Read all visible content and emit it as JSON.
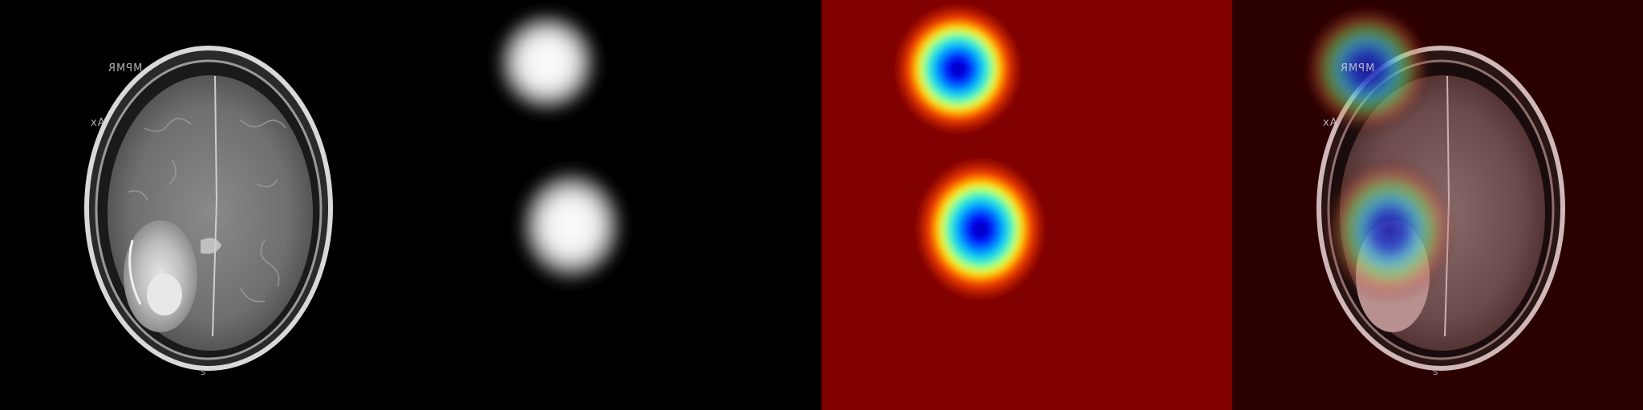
{
  "mri_labels": {
    "top_left": "MPMR",
    "side": "Ax",
    "bottom": "S"
  },
  "panels": [
    {
      "kind": "mri-scan",
      "icon": "brain-scan"
    },
    {
      "kind": "grayscale-attention-map",
      "icon": "heatmap-gray"
    },
    {
      "kind": "jet-colormap-attention-map",
      "icon": "heatmap-jet"
    },
    {
      "kind": "heatmap-overlay",
      "icon": "overlay"
    }
  ],
  "colors": {
    "background": "#000000",
    "jet_background": "#800000",
    "jet_low": "#0000ff",
    "jet_high": "#ff0000"
  }
}
